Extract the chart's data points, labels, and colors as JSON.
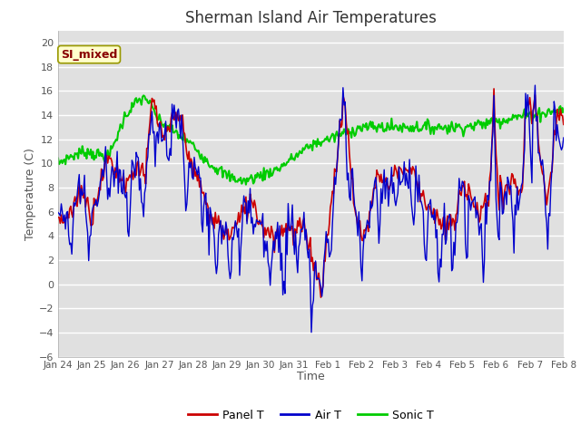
{
  "title": "Sherman Island Air Temperatures",
  "xlabel": "Time",
  "ylabel": "Temperature (C)",
  "annotation": "SI_mixed",
  "ylim": [
    -6,
    21
  ],
  "yticks": [
    -6,
    -4,
    -2,
    0,
    2,
    4,
    6,
    8,
    10,
    12,
    14,
    16,
    18,
    20
  ],
  "xtick_labels": [
    "Jan 24",
    "Jan 25",
    "Jan 26",
    "Jan 27",
    "Jan 28",
    "Jan 29",
    "Jan 30",
    "Jan 31",
    "Feb 1",
    "Feb 2",
    "Feb 3",
    "Feb 4",
    "Feb 5",
    "Feb 6",
    "Feb 7",
    "Feb 8"
  ],
  "panel_color": "#cc0000",
  "air_color": "#0000cc",
  "sonic_color": "#00cc00",
  "plot_bg": "#e0e0e0",
  "legend_labels": [
    "Panel T",
    "Air T",
    "Sonic T"
  ]
}
